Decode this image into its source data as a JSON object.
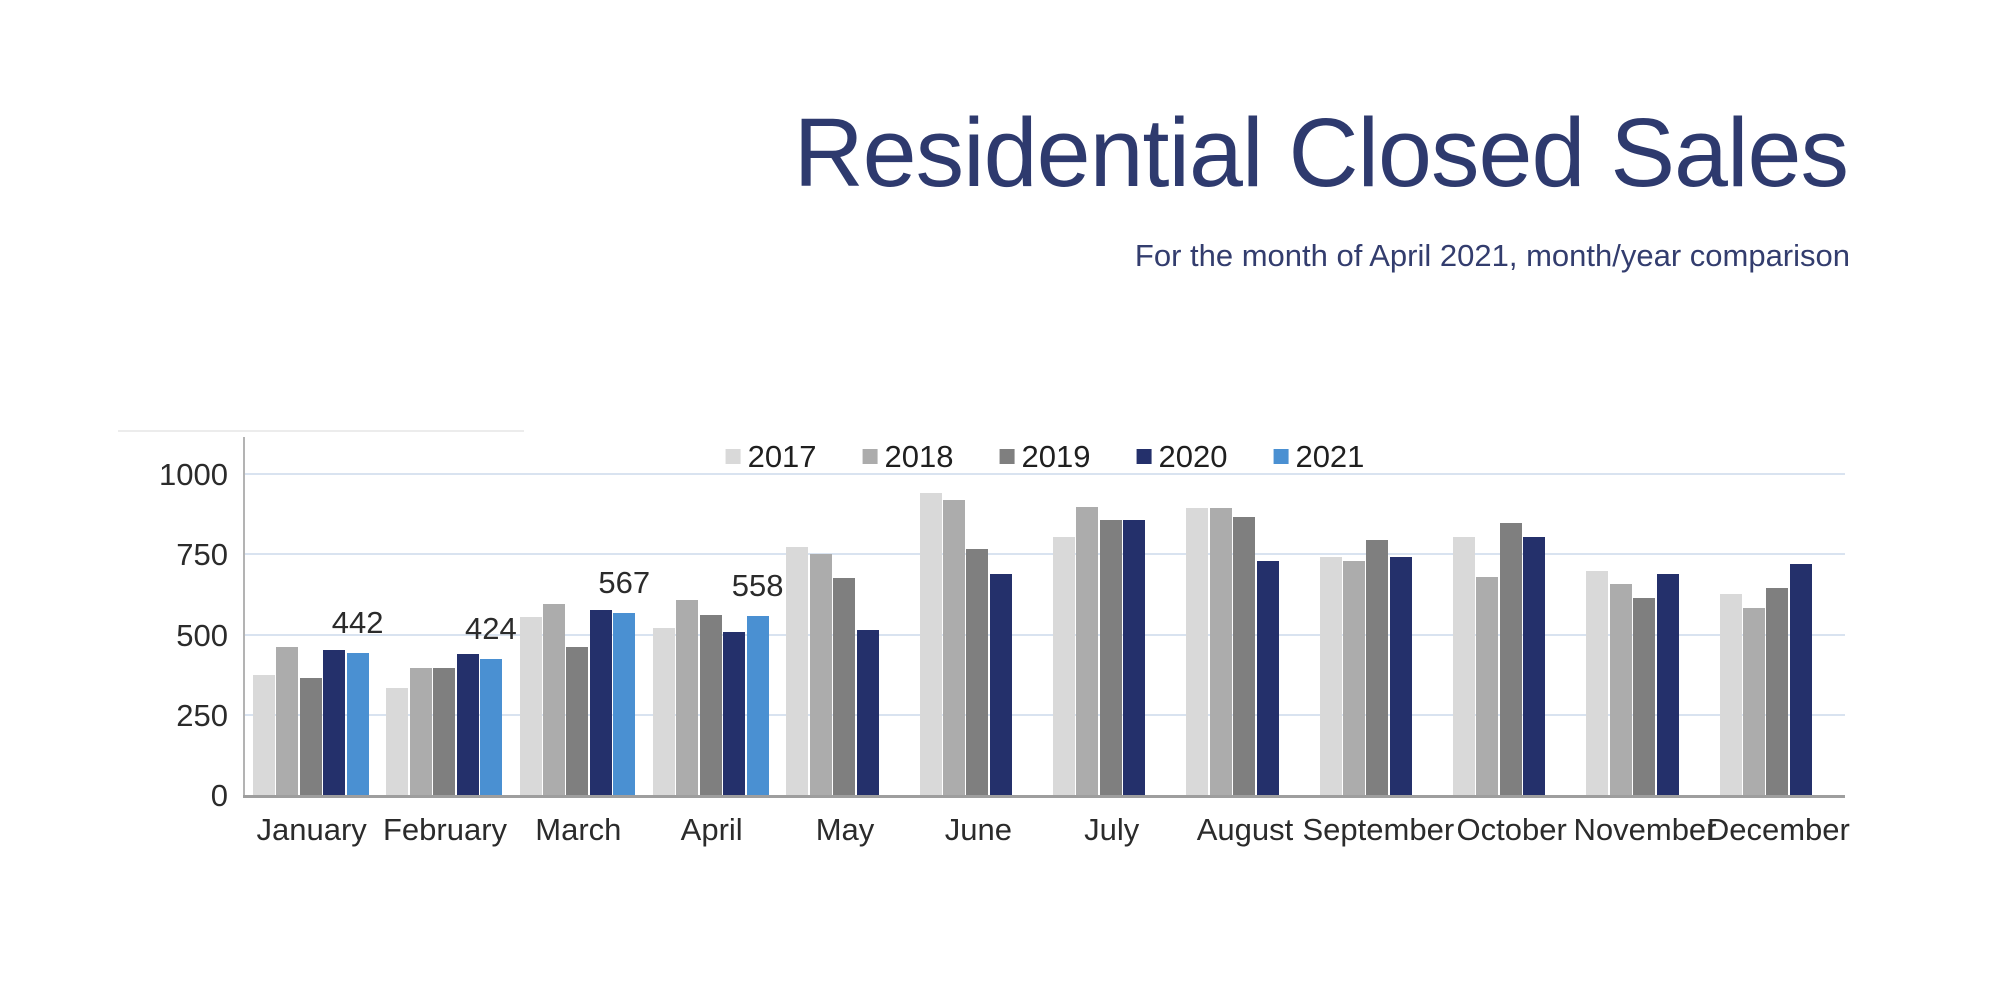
{
  "header": {
    "title": "Residential Closed Sales",
    "subtitle": "For the month of April 2021, month/year comparison"
  },
  "colors": {
    "title": "#2E3A6E",
    "subtitle": "#333D6E",
    "axis_baseline": "#9E9E9E",
    "y_axis_line": "#B3B3B3",
    "gridline": "#D9E3F0",
    "tick_label": "#2B2B2B",
    "bar_label": "#2B2B2B",
    "background": "#FFFFFF"
  },
  "chart_data": {
    "type": "bar",
    "title": "Residential Closed Sales",
    "subtitle": "For the month of April 2021, month/year comparison",
    "categories": [
      "January",
      "February",
      "March",
      "April",
      "May",
      "June",
      "July",
      "August",
      "September",
      "October",
      "November",
      "December"
    ],
    "series": [
      {
        "name": "2017",
        "color": "#D9D9D9",
        "values": [
          375,
          333,
          553,
          521,
          772,
          940,
          805,
          895,
          741,
          804,
          697,
          627
        ]
      },
      {
        "name": "2018",
        "color": "#ACACAC",
        "values": [
          460,
          396,
          596,
          606,
          751,
          919,
          896,
          895,
          729,
          678,
          657,
          583
        ]
      },
      {
        "name": "2019",
        "color": "#7F7F7F",
        "values": [
          366,
          396,
          460,
          562,
          677,
          765,
          856,
          865,
          794,
          846,
          615,
          646
        ]
      },
      {
        "name": "2020",
        "color": "#24306B",
        "values": [
          452,
          440,
          575,
          509,
          513,
          690,
          857,
          729,
          740,
          803,
          689,
          721
        ]
      },
      {
        "name": "2021",
        "color": "#4A90D2",
        "values": [
          442,
          424,
          567,
          558,
          null,
          null,
          null,
          null,
          null,
          null,
          null,
          null
        ]
      }
    ],
    "annotations": [
      {
        "category": "January",
        "series": "2021",
        "text": "442"
      },
      {
        "category": "February",
        "series": "2021",
        "text": "424"
      },
      {
        "category": "March",
        "series": "2021",
        "text": "567"
      },
      {
        "category": "April",
        "series": "2021",
        "text": "558"
      }
    ],
    "ylim": [
      0,
      1000
    ],
    "yticks": [
      0,
      250,
      500,
      750,
      1000
    ],
    "legend_position": "top-center",
    "grid": true
  }
}
